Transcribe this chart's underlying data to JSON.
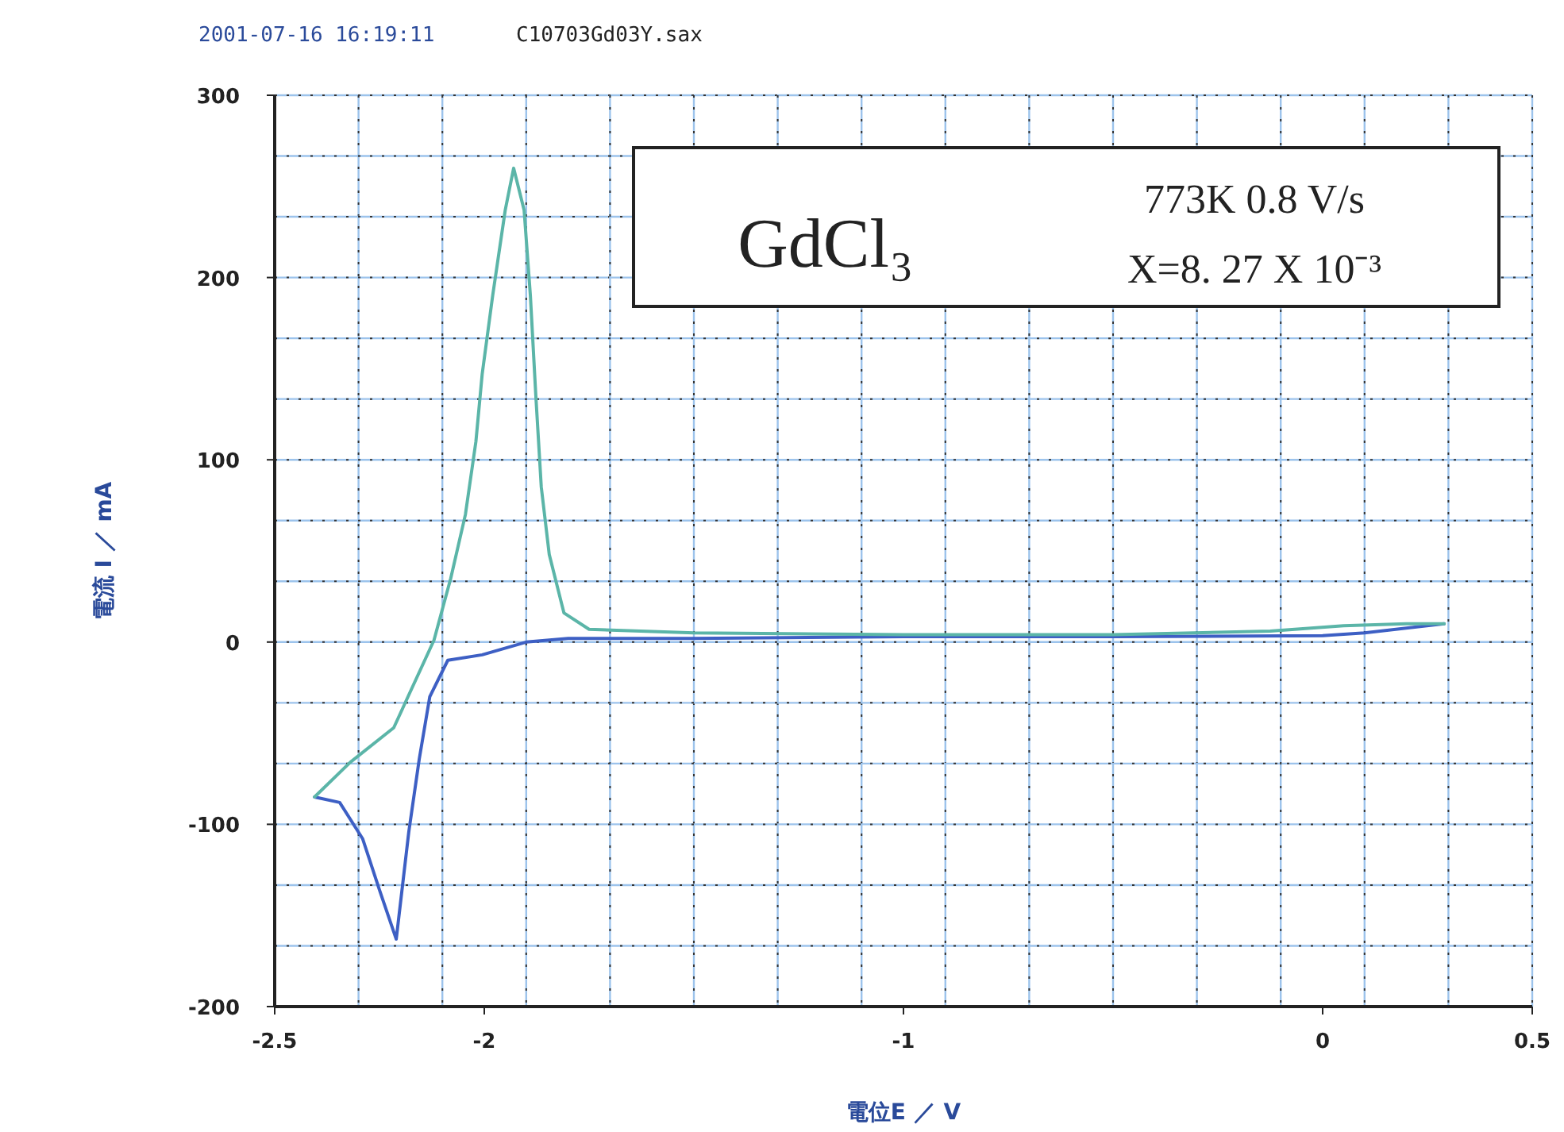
{
  "chart_data": {
    "type": "line",
    "xlabel": "電位E ／ V",
    "ylabel": "電流 I ／ mA",
    "annotations": [
      "2001-07-16 16:19:11",
      "C10703Gd03Y.sax",
      "GdCl₃",
      "773K   0.8 V/s",
      "X=8. 27 X 10⁻³"
    ],
    "xlim": [
      -2.5,
      0.5
    ],
    "ylim": [
      -200,
      300
    ],
    "xticks": [
      -2.5,
      -2,
      -1,
      0,
      0.5
    ],
    "yticks": [
      -200,
      -100,
      0,
      100,
      200,
      300
    ],
    "grid": true,
    "line_style": "solid",
    "marker": "none",
    "series": [
      {
        "color": "#3d5fc4",
        "x": [
          0.29,
          0.1,
          0,
          -0.5,
          -1,
          -1.5,
          -1.8,
          -1.9,
          -2.005,
          -2.087,
          -2.13,
          -2.155,
          -2.18,
          -2.21,
          -2.25,
          -2.29,
          -2.345,
          -2.405
        ],
        "values": [
          10,
          5,
          3.5,
          3,
          3,
          2,
          2,
          0,
          -7,
          -10,
          -30,
          -64,
          -104,
          -163,
          -136,
          -108,
          -88,
          -85
        ]
      },
      {
        "color": "#5bb5a8",
        "x": [
          -2.405,
          -2.32,
          -2.216,
          -2.12,
          -2.08,
          -2.045,
          -2.02,
          -2.005,
          -1.98,
          -1.95,
          -1.93,
          -1.905,
          -1.89,
          -1.877,
          -1.864,
          -1.845,
          -1.81,
          -1.75,
          -1.5,
          -1,
          -0.5,
          -0.125,
          0.05,
          0.2,
          0.29
        ],
        "values": [
          -85,
          -66,
          -47,
          1,
          35,
          70,
          110,
          147,
          190,
          237,
          260,
          237,
          190,
          135,
          85,
          48,
          16,
          7,
          5,
          4,
          4,
          6,
          9,
          10,
          10
        ]
      }
    ]
  }
}
